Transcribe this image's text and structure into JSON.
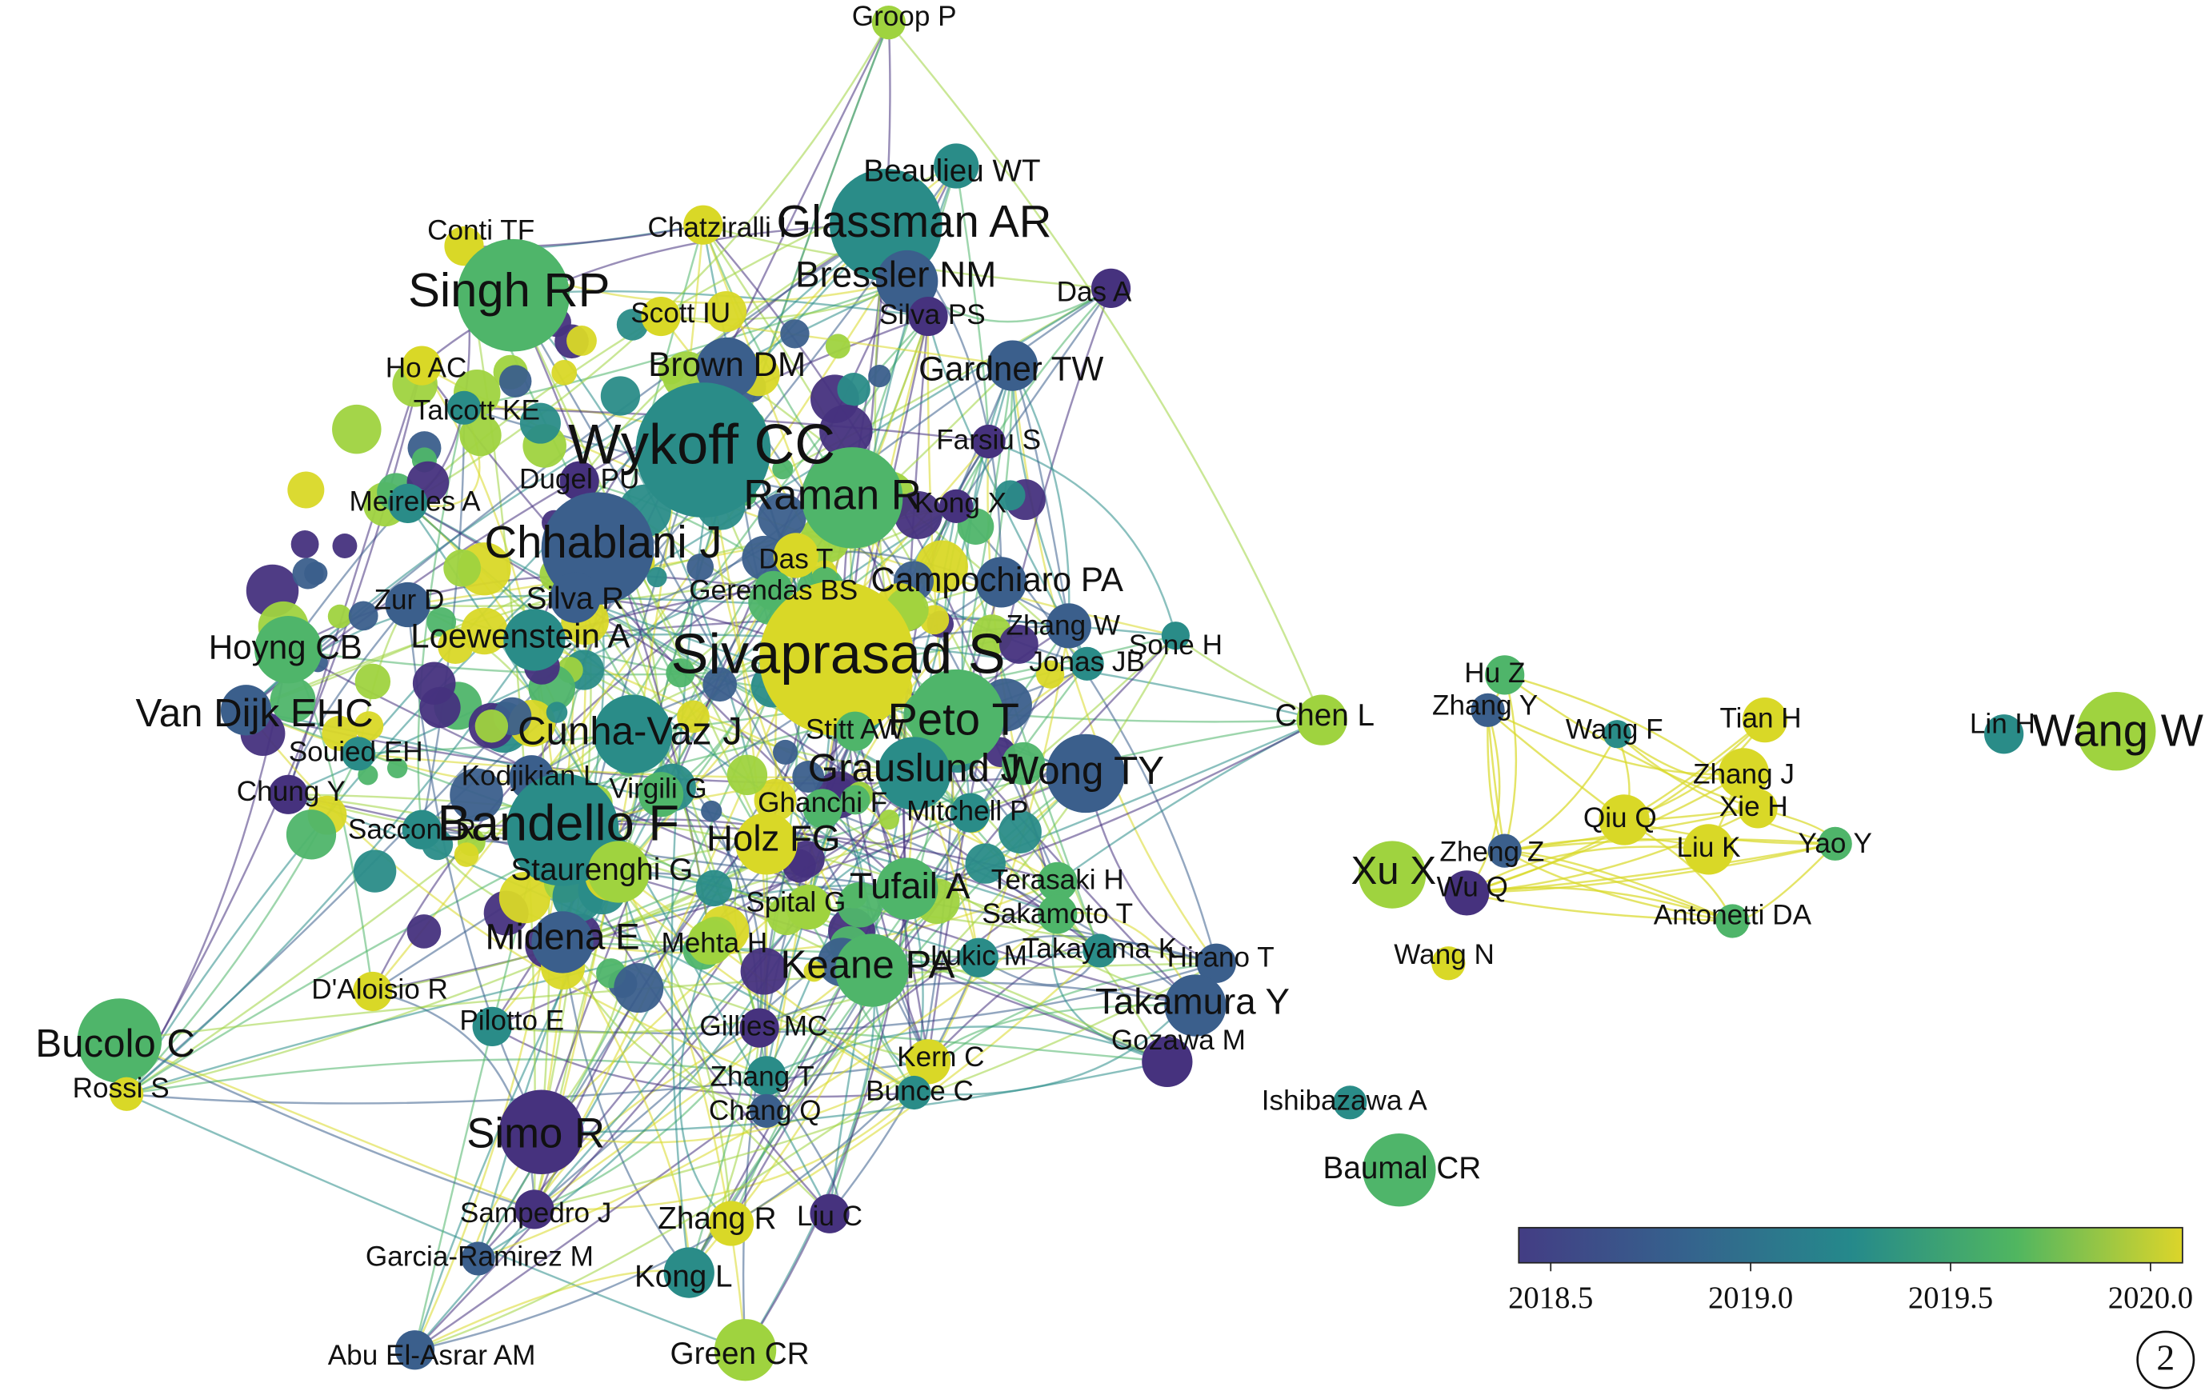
{
  "nodes": [
    {
      "label": "Groop P"
    },
    {
      "label": "Beaulieu WT"
    },
    {
      "label": "Glassman AR"
    },
    {
      "label": "Chatziralli I"
    },
    {
      "label": "Conti TF"
    },
    {
      "label": "Singh RP"
    },
    {
      "label": "Bressler NM"
    },
    {
      "label": "Das A"
    },
    {
      "label": "Scott IU"
    },
    {
      "label": "Silva PS"
    },
    {
      "label": "Ho AC"
    },
    {
      "label": "Brown DM"
    },
    {
      "label": "Gardner TW"
    },
    {
      "label": "Talcott KE"
    },
    {
      "label": "Wykoff CC"
    },
    {
      "label": "Farsiu S"
    },
    {
      "label": "Raman R"
    },
    {
      "label": "Meireles A"
    },
    {
      "label": "Dugel PU"
    },
    {
      "label": "Kong X"
    },
    {
      "label": "Chhablani J"
    },
    {
      "label": "Das T"
    },
    {
      "label": "Campochiaro PA"
    },
    {
      "label": "Zur D"
    },
    {
      "label": "Silva R"
    },
    {
      "label": "Gerendas BS"
    },
    {
      "label": "Zhang W"
    },
    {
      "label": "Sivaprasad S"
    },
    {
      "label": "Hoyng CB"
    },
    {
      "label": "Loewenstein A"
    },
    {
      "label": "Sone H"
    },
    {
      "label": "Jonas JB"
    },
    {
      "label": "Hu Z"
    },
    {
      "label": "Van Dijk EHC"
    },
    {
      "label": "Chen L"
    },
    {
      "label": "Zhang Y"
    },
    {
      "label": "Peto T"
    },
    {
      "label": "Wang F"
    },
    {
      "label": "Tian H"
    },
    {
      "label": "Lin H"
    },
    {
      "label": "Wang W"
    },
    {
      "label": "Souied EH"
    },
    {
      "label": "Cunha-Vaz J"
    },
    {
      "label": "Stitt AW"
    },
    {
      "label": "Grauslund J"
    },
    {
      "label": "Wong TY"
    },
    {
      "label": "Zhang J"
    },
    {
      "label": "Kodjikian L"
    },
    {
      "label": "Virgili G"
    },
    {
      "label": "Chung Y"
    },
    {
      "label": "Ghanchi F"
    },
    {
      "label": "Mitchell P"
    },
    {
      "label": "Xie H"
    },
    {
      "label": "Qiu Q"
    },
    {
      "label": "Bandello F"
    },
    {
      "label": "Sacconi R"
    },
    {
      "label": "Holz FG"
    },
    {
      "label": "Liu K"
    },
    {
      "label": "Yao Y"
    },
    {
      "label": "Zheng Z"
    },
    {
      "label": "Xu X"
    },
    {
      "label": "Wu Q"
    },
    {
      "label": "Staurenghi G"
    },
    {
      "label": "Tufail A"
    },
    {
      "label": "Terasaki H"
    },
    {
      "label": "Spital G"
    },
    {
      "label": "Sakamoto T"
    },
    {
      "label": "Antonetti DA"
    },
    {
      "label": "Midena E"
    },
    {
      "label": "Mehta H"
    },
    {
      "label": "Takayama K"
    },
    {
      "label": "Hirano T"
    },
    {
      "label": "Keane PA"
    },
    {
      "label": "Lukic M"
    },
    {
      "label": "Wang N"
    },
    {
      "label": "D'Aloisio R"
    },
    {
      "label": "Takamura Y"
    },
    {
      "label": "Pilotto E"
    },
    {
      "label": "Gillies MC"
    },
    {
      "label": "Gozawa M"
    },
    {
      "label": "Bucolo C"
    },
    {
      "label": "Kern C"
    },
    {
      "label": "Zhang T"
    },
    {
      "label": "Rossi S"
    },
    {
      "label": "Bunce C"
    },
    {
      "label": "Ishibazawa A"
    },
    {
      "label": "Chang Q"
    },
    {
      "label": "Simo R"
    },
    {
      "label": "Baumal CR"
    },
    {
      "label": "Sampedro J"
    },
    {
      "label": "Zhang R"
    },
    {
      "label": "Liu C"
    },
    {
      "label": "Garcia-Ramirez M"
    },
    {
      "label": "Kong L"
    },
    {
      "label": "Abu El-Asrar AM"
    },
    {
      "label": "Green CR"
    }
  ],
  "colorbar": {
    "xlim": [
      2018.42,
      2020.08
    ],
    "ticks": [
      2018.5,
      {
        "value": 2019,
        "label": "2019.0"
      },
      2019.5,
      {
        "value": 2020,
        "label": "2020.0"
      }
    ]
  },
  "panel_label": "2"
}
